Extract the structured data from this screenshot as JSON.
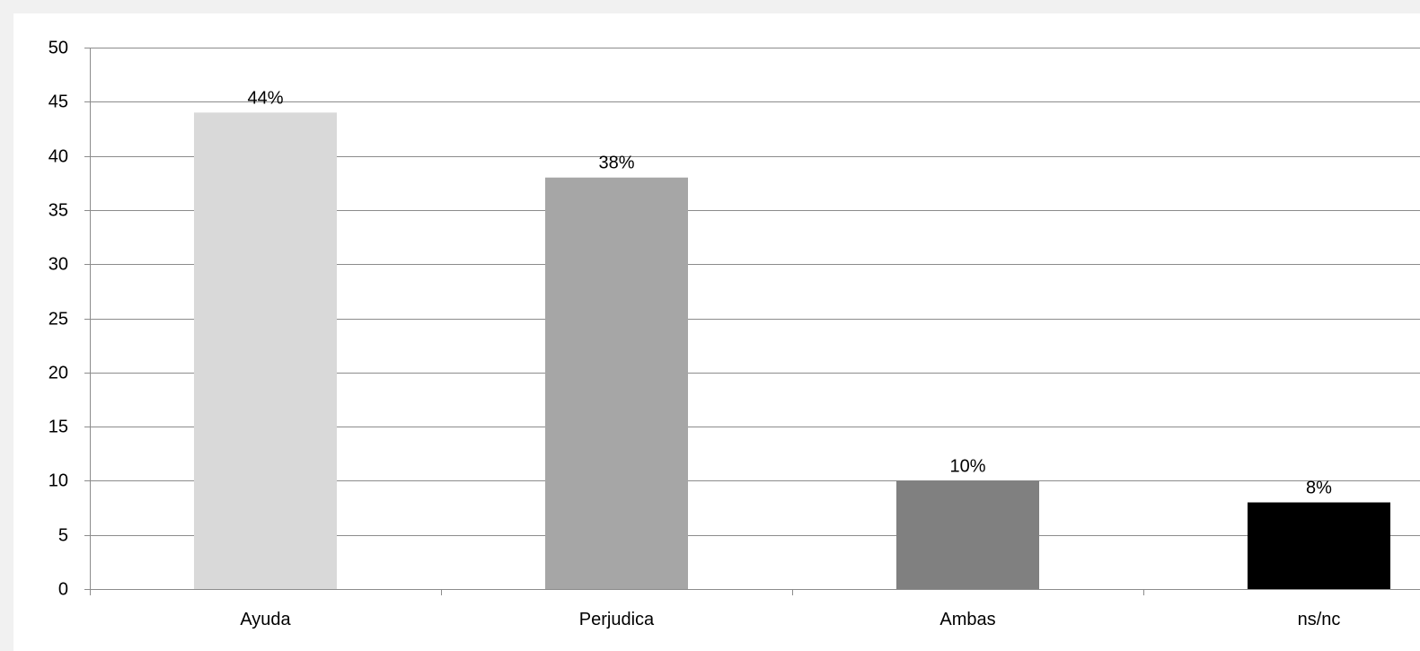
{
  "chart_data": {
    "type": "bar",
    "categories": [
      "Ayuda",
      "Perjudica",
      "Ambas",
      "ns/nc"
    ],
    "values": [
      44,
      38,
      10,
      8
    ],
    "data_labels": [
      "44%",
      "38%",
      "10%",
      "8%"
    ],
    "bar_colors": [
      "#d9d9d9",
      "#a6a6a6",
      "#808080",
      "#000000"
    ],
    "ylim": [
      0,
      50
    ],
    "yticks": [
      "0",
      "5",
      "10",
      "15",
      "20",
      "25",
      "30",
      "35",
      "40",
      "45",
      "50"
    ],
    "grid": true,
    "legend": "none"
  }
}
